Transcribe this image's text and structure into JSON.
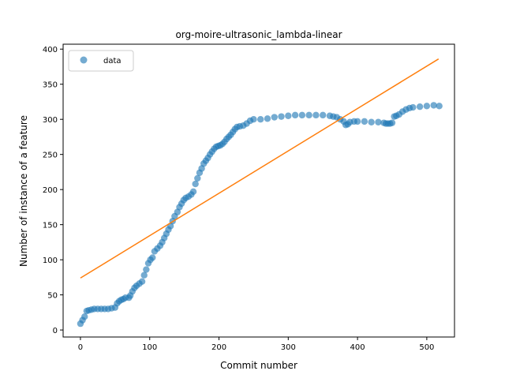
{
  "chart_data": {
    "type": "scatter",
    "title": "org-moire-ultrasonic_lambda-linear",
    "xlabel": "Commit number",
    "ylabel": "Number of instance of a feature",
    "xlim": [
      -25,
      540
    ],
    "ylim": [
      -10,
      407
    ],
    "xticks": [
      0,
      100,
      200,
      300,
      400,
      500
    ],
    "yticks": [
      0,
      50,
      100,
      150,
      200,
      250,
      300,
      350,
      400
    ],
    "grid": false,
    "legend": {
      "position": "top-left",
      "entries": [
        "data"
      ]
    },
    "colors": {
      "data": "#1f77b4",
      "fit": "#ff7f0e"
    },
    "series": [
      {
        "name": "data",
        "kind": "scatter",
        "points": [
          [
            0,
            9
          ],
          [
            3,
            14
          ],
          [
            6,
            19
          ],
          [
            9,
            27
          ],
          [
            12,
            28
          ],
          [
            16,
            29
          ],
          [
            20,
            30
          ],
          [
            25,
            30
          ],
          [
            30,
            30
          ],
          [
            35,
            30
          ],
          [
            40,
            30
          ],
          [
            45,
            31
          ],
          [
            50,
            32
          ],
          [
            53,
            38
          ],
          [
            56,
            41
          ],
          [
            59,
            43
          ],
          [
            62,
            44
          ],
          [
            65,
            46
          ],
          [
            70,
            46
          ],
          [
            72,
            49
          ],
          [
            75,
            55
          ],
          [
            78,
            60
          ],
          [
            81,
            63
          ],
          [
            85,
            66
          ],
          [
            89,
            69
          ],
          [
            92,
            78
          ],
          [
            95,
            86
          ],
          [
            98,
            95
          ],
          [
            101,
            100
          ],
          [
            104,
            103
          ],
          [
            107,
            112
          ],
          [
            111,
            116
          ],
          [
            115,
            120
          ],
          [
            118,
            125
          ],
          [
            121,
            131
          ],
          [
            124,
            137
          ],
          [
            127,
            143
          ],
          [
            130,
            148
          ],
          [
            133,
            155
          ],
          [
            136,
            162
          ],
          [
            140,
            168
          ],
          [
            143,
            175
          ],
          [
            146,
            180
          ],
          [
            149,
            185
          ],
          [
            152,
            188
          ],
          [
            156,
            190
          ],
          [
            160,
            193
          ],
          [
            163,
            197
          ],
          [
            166,
            208
          ],
          [
            169,
            216
          ],
          [
            172,
            224
          ],
          [
            175,
            230
          ],
          [
            178,
            237
          ],
          [
            181,
            241
          ],
          [
            184,
            245
          ],
          [
            187,
            250
          ],
          [
            190,
            254
          ],
          [
            193,
            258
          ],
          [
            196,
            261
          ],
          [
            199,
            262
          ],
          [
            202,
            263
          ],
          [
            205,
            265
          ],
          [
            208,
            268
          ],
          [
            211,
            272
          ],
          [
            214,
            275
          ],
          [
            217,
            278
          ],
          [
            220,
            282
          ],
          [
            223,
            286
          ],
          [
            226,
            289
          ],
          [
            230,
            290
          ],
          [
            235,
            291
          ],
          [
            240,
            294
          ],
          [
            245,
            298
          ],
          [
            250,
            300
          ],
          [
            260,
            300
          ],
          [
            270,
            301
          ],
          [
            280,
            303
          ],
          [
            290,
            304
          ],
          [
            300,
            305
          ],
          [
            310,
            306
          ],
          [
            320,
            306
          ],
          [
            330,
            306
          ],
          [
            340,
            306
          ],
          [
            350,
            306
          ],
          [
            360,
            305
          ],
          [
            365,
            304
          ],
          [
            370,
            303
          ],
          [
            375,
            300
          ],
          [
            380,
            297
          ],
          [
            383,
            292
          ],
          [
            386,
            293
          ],
          [
            389,
            296
          ],
          [
            395,
            297
          ],
          [
            400,
            297
          ],
          [
            410,
            297
          ],
          [
            420,
            296
          ],
          [
            430,
            296
          ],
          [
            438,
            295
          ],
          [
            441,
            294
          ],
          [
            444,
            294
          ],
          [
            447,
            294
          ],
          [
            450,
            295
          ],
          [
            453,
            304
          ],
          [
            456,
            305
          ],
          [
            460,
            307
          ],
          [
            465,
            311
          ],
          [
            470,
            314
          ],
          [
            475,
            316
          ],
          [
            480,
            317
          ],
          [
            490,
            318
          ],
          [
            500,
            319
          ],
          [
            510,
            320
          ],
          [
            518,
            319
          ]
        ]
      },
      {
        "kind": "line",
        "points": [
          [
            0,
            74
          ],
          [
            517,
            386
          ]
        ]
      }
    ]
  }
}
